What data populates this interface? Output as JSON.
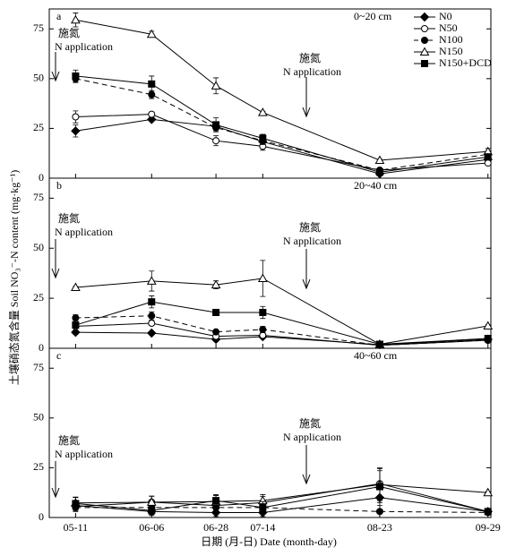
{
  "chart_data": [
    {
      "type": "line",
      "panel": "a",
      "subtitle": "0~20 cm",
      "ylabel": "土壤硝态氮含量 Soil NO₃⁻-N content (mg·kg⁻¹)",
      "x": [
        "05-11",
        "06-06",
        "06-28",
        "07-14",
        "08-23",
        "09-29"
      ],
      "xlim": [
        "05-02",
        "09-30"
      ],
      "xticks": [
        "05-11",
        "06-06",
        "06-28",
        "07-14",
        "08-23",
        "09-29"
      ],
      "ylim": [
        0,
        85
      ],
      "yticks": [
        0,
        25,
        50,
        75
      ],
      "legend": "upper right",
      "annotations": [
        [
          "施氮",
          "N application"
        ],
        [
          "施氮",
          "N application"
        ]
      ],
      "series": [
        {
          "name": "N0",
          "color": "#000000",
          "marker": "diamond",
          "filled": true,
          "dash": false,
          "values": [
            23.7,
            29.5,
            26,
            18.3,
            2.2,
            9.4
          ],
          "errors": [
            3,
            1,
            2,
            1.5,
            0.5,
            1
          ]
        },
        {
          "name": "N50",
          "color": "#000000",
          "marker": "circle",
          "filled": false,
          "dash": false,
          "values": [
            30.8,
            32.1,
            18.8,
            16,
            4,
            7.6
          ],
          "errors": [
            3,
            1,
            2.5,
            2,
            0.5,
            1
          ]
        },
        {
          "name": "N100",
          "color": "#000000",
          "marker": "circle",
          "filled": true,
          "dash": true,
          "values": [
            50,
            42,
            25.4,
            18.8,
            4,
            12
          ],
          "errors": [
            2,
            2,
            2,
            2,
            0.5,
            1.5
          ]
        },
        {
          "name": "N150",
          "color": "#000000",
          "marker": "triangle",
          "filled": false,
          "dash": false,
          "values": [
            79.5,
            72.3,
            46.4,
            33,
            9,
            13.4
          ],
          "errors": [
            3.5,
            1.5,
            4,
            0.5,
            0.5,
            1.5
          ]
        },
        {
          "name": "N150+DCD",
          "color": "#000000",
          "marker": "square",
          "filled": true,
          "dash": false,
          "values": [
            51.3,
            47.3,
            26.8,
            20,
            3,
            10.7
          ],
          "errors": [
            3,
            4,
            3.5,
            2,
            0.5,
            1
          ]
        }
      ]
    },
    {
      "type": "line",
      "panel": "b",
      "subtitle": "20~40 cm",
      "x": [
        "05-11",
        "06-06",
        "06-28",
        "07-14",
        "08-23",
        "09-29"
      ],
      "xlim": [
        "05-02",
        "09-30"
      ],
      "xticks": [
        "05-11",
        "06-06",
        "06-28",
        "07-14",
        "08-23",
        "09-29"
      ],
      "ylim": [
        0,
        85
      ],
      "yticks": [
        0,
        25,
        50,
        75
      ],
      "annotations": [
        [
          "施氮",
          "N application"
        ],
        [
          "施氮",
          "N application"
        ]
      ],
      "series": [
        {
          "color": "#000000",
          "marker": "diamond",
          "filled": true,
          "dash": false,
          "values": [
            8,
            7.6,
            4.5,
            5.8,
            1.8,
            4.5
          ],
          "errors": [
            1,
            0.5,
            1,
            1,
            0.3,
            0.5
          ]
        },
        {
          "color": "#000000",
          "marker": "circle",
          "filled": false,
          "dash": false,
          "values": [
            11,
            12.5,
            6,
            6.5,
            1.5,
            4
          ],
          "errors": [
            1,
            1,
            1,
            1,
            0.3,
            0.5
          ]
        },
        {
          "color": "#000000",
          "marker": "circle",
          "filled": true,
          "dash": true,
          "values": [
            15.2,
            16.2,
            8.2,
            9.4,
            1.5,
            4
          ],
          "errors": [
            1.5,
            2,
            1,
            1.5,
            0.3,
            0.5
          ]
        },
        {
          "color": "#000000",
          "marker": "triangle",
          "filled": false,
          "dash": false,
          "values": [
            30.4,
            33.6,
            31.7,
            34.9,
            2,
            11.2
          ],
          "errors": [
            0.5,
            5,
            2,
            9,
            0.3,
            0.5
          ]
        },
        {
          "color": "#000000",
          "marker": "square",
          "filled": true,
          "dash": false,
          "values": [
            11.6,
            23.2,
            17.9,
            17.9,
            2,
            4.9
          ],
          "errors": [
            1,
            3,
            0.5,
            3,
            0.3,
            0.5
          ]
        }
      ]
    },
    {
      "type": "line",
      "panel": "c",
      "subtitle": "40~60 cm",
      "xlabel": "日期 (月-日) Date (month-day)",
      "x": [
        "05-11",
        "06-06",
        "06-28",
        "07-14",
        "08-23",
        "09-29"
      ],
      "xlim": [
        "05-02",
        "09-30"
      ],
      "xticks": [
        "05-11",
        "06-06",
        "06-28",
        "07-14",
        "08-23",
        "09-29"
      ],
      "ylim": [
        0,
        85
      ],
      "yticks": [
        0,
        25,
        50,
        75
      ],
      "annotations": [
        [
          "施氮",
          "N application"
        ],
        [
          "施氮",
          "N application"
        ]
      ],
      "series": [
        {
          "color": "#000000",
          "marker": "diamond",
          "filled": true,
          "dash": false,
          "values": [
            6,
            3,
            2.5,
            2.5,
            10,
            3
          ],
          "errors": [
            2,
            2,
            2,
            2,
            6,
            1
          ]
        },
        {
          "color": "#000000",
          "marker": "circle",
          "filled": false,
          "dash": false,
          "values": [
            5.5,
            7.7,
            6,
            7.5,
            17,
            3
          ],
          "errors": [
            2,
            3,
            3,
            3,
            8,
            1
          ]
        },
        {
          "color": "#000000",
          "marker": "circle",
          "filled": true,
          "dash": true,
          "values": [
            5,
            5,
            5,
            5,
            3,
            2.5
          ],
          "errors": [
            2,
            2,
            2,
            2,
            3,
            1
          ]
        },
        {
          "color": "#000000",
          "marker": "triangle",
          "filled": false,
          "dash": false,
          "values": [
            7.3,
            7.7,
            8,
            8.5,
            16.5,
            12.5
          ],
          "errors": [
            3,
            3,
            3,
            3,
            8,
            0.5
          ]
        },
        {
          "color": "#000000",
          "marker": "square",
          "filled": true,
          "dash": false,
          "values": [
            7,
            3.5,
            8.5,
            5,
            15.5,
            3
          ],
          "errors": [
            3,
            2,
            3,
            3,
            8,
            1
          ]
        }
      ]
    }
  ]
}
